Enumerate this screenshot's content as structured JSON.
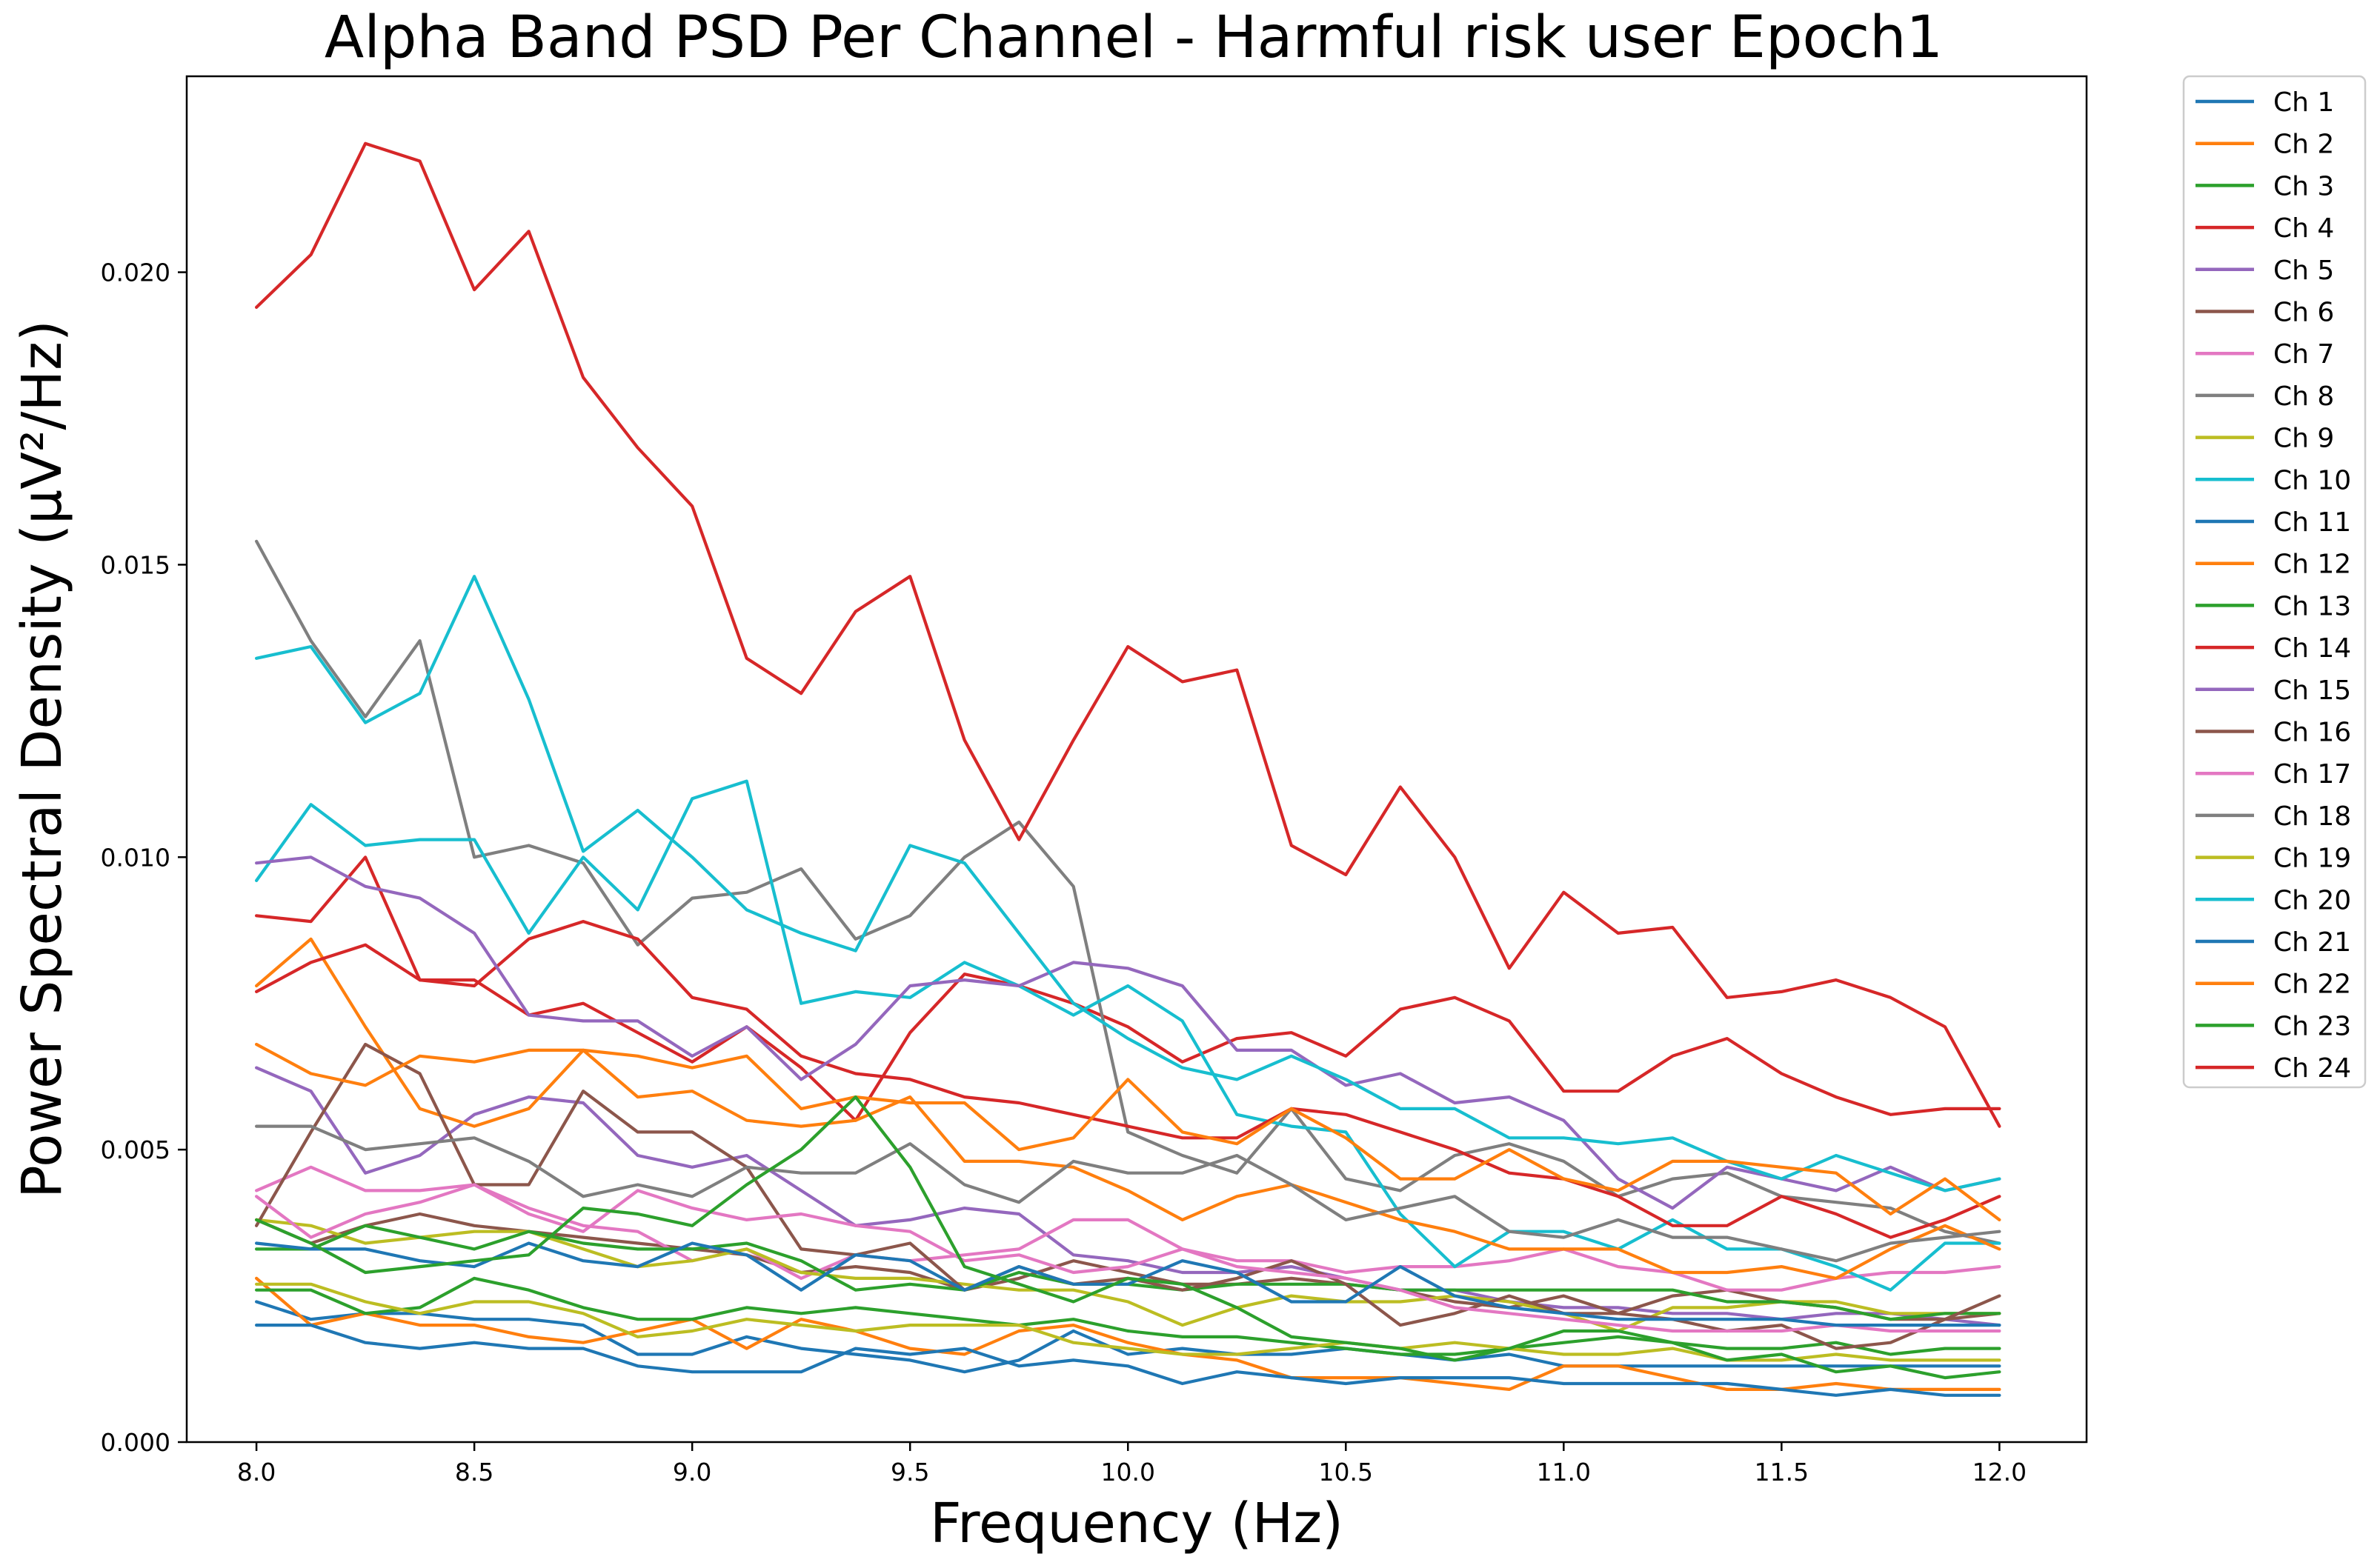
{
  "chart_data": {
    "type": "line",
    "title": "Alpha Band PSD Per Channel - Harmful risk user Epoch1",
    "xlabel": "Frequency (Hz)",
    "ylabel": "Power Spectral Density (µV²/Hz)",
    "xlim": [
      7.84,
      12.2
    ],
    "ylim": [
      0,
      0.02335
    ],
    "xticks": [
      8.0,
      8.5,
      9.0,
      9.5,
      10.0,
      10.5,
      11.0,
      11.5,
      12.0
    ],
    "xtick_labels": [
      "8.0",
      "8.5",
      "9.0",
      "9.5",
      "10.0",
      "10.5",
      "11.0",
      "11.5",
      "12.0"
    ],
    "yticks": [
      0.0,
      0.005,
      0.01,
      0.015,
      0.02
    ],
    "ytick_labels": [
      "0.000",
      "0.005",
      "0.010",
      "0.015",
      "0.020"
    ],
    "legend_position": "outside-right",
    "x": [
      8.0,
      8.125,
      8.25,
      8.375,
      8.5,
      8.625,
      8.75,
      8.875,
      9.0,
      9.125,
      9.25,
      9.375,
      9.5,
      9.625,
      9.75,
      9.875,
      10.0,
      10.125,
      10.25,
      10.375,
      10.5,
      10.625,
      10.75,
      10.875,
      11.0,
      11.125,
      11.25,
      11.375,
      11.5,
      11.625,
      11.75,
      11.875,
      12.0
    ],
    "series": [
      {
        "name": "Ch 1",
        "color": "#1f77b4",
        "values": [
          0.0024,
          0.0021,
          0.0022,
          0.0022,
          0.0021,
          0.0021,
          0.002,
          0.0015,
          0.0015,
          0.0018,
          0.0016,
          0.0015,
          0.0014,
          0.0012,
          0.0014,
          0.0019,
          0.0015,
          0.0016,
          0.0015,
          0.0015,
          0.0016,
          0.0015,
          0.0014,
          0.0015,
          0.0013,
          0.0013,
          0.0013,
          0.0013,
          0.0013,
          0.0013,
          0.0013,
          0.0013,
          0.0013
        ]
      },
      {
        "name": "Ch 2",
        "color": "#ff7f0e",
        "values": [
          0.0028,
          0.002,
          0.0022,
          0.002,
          0.002,
          0.0018,
          0.0017,
          0.0019,
          0.0021,
          0.0016,
          0.0021,
          0.0019,
          0.0016,
          0.0015,
          0.0019,
          0.002,
          0.0017,
          0.0015,
          0.0014,
          0.0011,
          0.0011,
          0.0011,
          0.001,
          0.0009,
          0.0013,
          0.0013,
          0.0011,
          0.0009,
          0.0009,
          0.001,
          0.0009,
          0.0009,
          0.0009
        ]
      },
      {
        "name": "Ch 3",
        "color": "#2ca02c",
        "values": [
          0.0026,
          0.0026,
          0.0022,
          0.0023,
          0.0028,
          0.0026,
          0.0023,
          0.0021,
          0.0021,
          0.0023,
          0.0022,
          0.0023,
          0.0022,
          0.0021,
          0.002,
          0.0021,
          0.0019,
          0.0018,
          0.0018,
          0.0017,
          0.0016,
          0.0015,
          0.0015,
          0.0016,
          0.0017,
          0.0018,
          0.0017,
          0.0016,
          0.0016,
          0.0017,
          0.0015,
          0.0016,
          0.0016
        ]
      },
      {
        "name": "Ch 4",
        "color": "#d62728",
        "values": [
          0.009,
          0.0089,
          0.01,
          0.0079,
          0.0079,
          0.0073,
          0.0075,
          0.007,
          0.0065,
          0.0071,
          0.0064,
          0.0055,
          0.007,
          0.008,
          0.0078,
          0.0075,
          0.0071,
          0.0065,
          0.0069,
          0.007,
          0.0066,
          0.0074,
          0.0076,
          0.0072,
          0.006,
          0.006,
          0.0066,
          0.0069,
          0.0063,
          0.0059,
          0.0056,
          0.0057,
          0.0057
        ]
      },
      {
        "name": "Ch 5",
        "color": "#9467bd",
        "values": [
          0.0064,
          0.006,
          0.0046,
          0.0049,
          0.0056,
          0.0059,
          0.0058,
          0.0049,
          0.0047,
          0.0049,
          0.0043,
          0.0037,
          0.0038,
          0.004,
          0.0039,
          0.0032,
          0.0031,
          0.0029,
          0.0029,
          0.003,
          0.0028,
          0.0026,
          0.0026,
          0.0024,
          0.0023,
          0.0023,
          0.0022,
          0.0022,
          0.0021,
          0.0022,
          0.0022,
          0.0021,
          0.002
        ]
      },
      {
        "name": "Ch 6",
        "color": "#8c564b",
        "values": [
          0.0038,
          0.0034,
          0.0037,
          0.0039,
          0.0037,
          0.0036,
          0.0035,
          0.0034,
          0.0033,
          0.0032,
          0.0029,
          0.003,
          0.0029,
          0.0026,
          0.0028,
          0.0031,
          0.0029,
          0.0027,
          0.0027,
          0.0028,
          0.0027,
          0.0026,
          0.0024,
          0.0023,
          0.0025,
          0.0022,
          0.0025,
          0.0026,
          0.0024,
          0.0023,
          0.0021,
          0.0021,
          0.0022
        ]
      },
      {
        "name": "Ch 7",
        "color": "#e377c2",
        "values": [
          0.0043,
          0.0047,
          0.0043,
          0.0043,
          0.0044,
          0.004,
          0.0037,
          0.0036,
          0.0031,
          0.0033,
          0.0028,
          0.0032,
          0.0031,
          0.0032,
          0.0033,
          0.0038,
          0.0038,
          0.0033,
          0.0031,
          0.0031,
          0.0029,
          0.003,
          0.003,
          0.0031,
          0.0033,
          0.003,
          0.0029,
          0.0026,
          0.0026,
          0.0028,
          0.0029,
          0.0029,
          0.003
        ]
      },
      {
        "name": "Ch 8",
        "color": "#7f7f7f",
        "values": [
          0.0154,
          0.0137,
          0.0124,
          0.0137,
          0.01,
          0.0102,
          0.0099,
          0.0085,
          0.0093,
          0.0094,
          0.0098,
          0.0086,
          0.009,
          0.01,
          0.0106,
          0.0095,
          0.0053,
          0.0049,
          0.0046,
          0.0057,
          0.0045,
          0.0043,
          0.0049,
          0.0051,
          0.0048,
          0.0042,
          0.0045,
          0.0046,
          0.0042,
          0.0041,
          0.004,
          0.0036,
          0.0034
        ]
      },
      {
        "name": "Ch 9",
        "color": "#bcbd22",
        "values": [
          0.0038,
          0.0037,
          0.0034,
          0.0035,
          0.0036,
          0.0036,
          0.0033,
          0.003,
          0.0031,
          0.0033,
          0.0029,
          0.0028,
          0.0028,
          0.0027,
          0.0026,
          0.0026,
          0.0024,
          0.002,
          0.0023,
          0.0025,
          0.0024,
          0.0024,
          0.0025,
          0.0024,
          0.0022,
          0.0019,
          0.0023,
          0.0023,
          0.0024,
          0.0024,
          0.0022,
          0.0022,
          0.0022
        ]
      },
      {
        "name": "Ch 10",
        "color": "#17becf",
        "values": [
          0.0096,
          0.0109,
          0.0102,
          0.0103,
          0.0103,
          0.0087,
          0.01,
          0.0091,
          0.011,
          0.0113,
          0.0075,
          0.0077,
          0.0076,
          0.0082,
          0.0078,
          0.0073,
          0.0078,
          0.0072,
          0.0056,
          0.0054,
          0.0053,
          0.0039,
          0.003,
          0.0036,
          0.0036,
          0.0033,
          0.0038,
          0.0033,
          0.0033,
          0.003,
          0.0026,
          0.0034,
          0.0034
        ]
      },
      {
        "name": "Ch 11",
        "color": "#1f77b4",
        "values": [
          0.002,
          0.002,
          0.0017,
          0.0016,
          0.0017,
          0.0016,
          0.0016,
          0.0013,
          0.0012,
          0.0012,
          0.0012,
          0.0016,
          0.0015,
          0.0016,
          0.0013,
          0.0014,
          0.0013,
          0.001,
          0.0012,
          0.0011,
          0.001,
          0.0011,
          0.0011,
          0.0011,
          0.001,
          0.001,
          0.001,
          0.001,
          0.0009,
          0.0008,
          0.0009,
          0.0008,
          0.0008
        ]
      },
      {
        "name": "Ch 12",
        "color": "#ff7f0e",
        "values": [
          0.0078,
          0.0086,
          0.0071,
          0.0057,
          0.0054,
          0.0057,
          0.0067,
          0.0059,
          0.006,
          0.0055,
          0.0054,
          0.0055,
          0.0059,
          0.0048,
          0.0048,
          0.0047,
          0.0043,
          0.0038,
          0.0042,
          0.0044,
          0.0041,
          0.0038,
          0.0036,
          0.0033,
          0.0033,
          0.0033,
          0.0029,
          0.0029,
          0.003,
          0.0028,
          0.0033,
          0.0037,
          0.0033
        ]
      },
      {
        "name": "Ch 13",
        "color": "#2ca02c",
        "values": [
          0.0033,
          0.0033,
          0.0037,
          0.0035,
          0.0033,
          0.0036,
          0.0034,
          0.0033,
          0.0033,
          0.0034,
          0.0031,
          0.0026,
          0.0027,
          0.0026,
          0.0029,
          0.0027,
          0.0027,
          0.0026,
          0.0027,
          0.0027,
          0.0027,
          0.0026,
          0.0026,
          0.0026,
          0.0026,
          0.0026,
          0.0026,
          0.0024,
          0.0024,
          0.0023,
          0.0021,
          0.0022,
          0.0022
        ]
      },
      {
        "name": "Ch 14",
        "color": "#d62728",
        "values": [
          0.0077,
          0.0082,
          0.0085,
          0.0079,
          0.0078,
          0.0086,
          0.0089,
          0.0086,
          0.0076,
          0.0074,
          0.0066,
          0.0063,
          0.0062,
          0.0059,
          0.0058,
          0.0056,
          0.0054,
          0.0052,
          0.0052,
          0.0057,
          0.0056,
          0.0053,
          0.005,
          0.0046,
          0.0045,
          0.0042,
          0.0037,
          0.0037,
          0.0042,
          0.0039,
          0.0035,
          0.0038,
          0.0042
        ]
      },
      {
        "name": "Ch 15",
        "color": "#9467bd",
        "values": [
          0.0099,
          0.01,
          0.0095,
          0.0093,
          0.0087,
          0.0073,
          0.0072,
          0.0072,
          0.0066,
          0.0071,
          0.0062,
          0.0068,
          0.0078,
          0.0079,
          0.0078,
          0.0082,
          0.0081,
          0.0078,
          0.0067,
          0.0067,
          0.0061,
          0.0063,
          0.0058,
          0.0059,
          0.0055,
          0.0045,
          0.004,
          0.0047,
          0.0045,
          0.0043,
          0.0047,
          0.0043,
          0.0045
        ]
      },
      {
        "name": "Ch 16",
        "color": "#8c564b",
        "values": [
          0.0037,
          0.0053,
          0.0068,
          0.0063,
          0.0044,
          0.0044,
          0.006,
          0.0053,
          0.0053,
          0.0047,
          0.0033,
          0.0032,
          0.0034,
          0.0026,
          0.003,
          0.0027,
          0.0028,
          0.0026,
          0.0028,
          0.0031,
          0.0027,
          0.002,
          0.0022,
          0.0025,
          0.0022,
          0.0022,
          0.0021,
          0.0019,
          0.002,
          0.0016,
          0.0017,
          0.0021,
          0.0025
        ]
      },
      {
        "name": "Ch 17",
        "color": "#e377c2",
        "values": [
          0.0042,
          0.0035,
          0.0039,
          0.0041,
          0.0044,
          0.0039,
          0.0036,
          0.0043,
          0.004,
          0.0038,
          0.0039,
          0.0037,
          0.0036,
          0.0031,
          0.0032,
          0.0029,
          0.003,
          0.0033,
          0.003,
          0.0029,
          0.0028,
          0.0026,
          0.0023,
          0.0022,
          0.0021,
          0.002,
          0.0019,
          0.0019,
          0.0019,
          0.002,
          0.0019,
          0.0019,
          0.0019
        ]
      },
      {
        "name": "Ch 18",
        "color": "#7f7f7f",
        "values": [
          0.0054,
          0.0054,
          0.005,
          0.0051,
          0.0052,
          0.0048,
          0.0042,
          0.0044,
          0.0042,
          0.0047,
          0.0046,
          0.0046,
          0.0051,
          0.0044,
          0.0041,
          0.0048,
          0.0046,
          0.0046,
          0.0049,
          0.0044,
          0.0038,
          0.004,
          0.0042,
          0.0036,
          0.0035,
          0.0038,
          0.0035,
          0.0035,
          0.0033,
          0.0031,
          0.0034,
          0.0035,
          0.0036
        ]
      },
      {
        "name": "Ch 19",
        "color": "#bcbd22",
        "values": [
          0.0027,
          0.0027,
          0.0024,
          0.0022,
          0.0024,
          0.0024,
          0.0022,
          0.0018,
          0.0019,
          0.0021,
          0.002,
          0.0019,
          0.002,
          0.002,
          0.002,
          0.0017,
          0.0016,
          0.0015,
          0.0015,
          0.0016,
          0.0017,
          0.0016,
          0.0017,
          0.0016,
          0.0015,
          0.0015,
          0.0016,
          0.0014,
          0.0014,
          0.0015,
          0.0014,
          0.0014,
          0.0014
        ]
      },
      {
        "name": "Ch 20",
        "color": "#17becf",
        "values": [
          0.0134,
          0.0136,
          0.0123,
          0.0128,
          0.0148,
          0.0127,
          0.0101,
          0.0108,
          0.01,
          0.0091,
          0.0087,
          0.0084,
          0.0102,
          0.0099,
          0.0087,
          0.0075,
          0.0069,
          0.0064,
          0.0062,
          0.0066,
          0.0062,
          0.0057,
          0.0057,
          0.0052,
          0.0052,
          0.0051,
          0.0052,
          0.0048,
          0.0045,
          0.0049,
          0.0046,
          0.0043,
          0.0045
        ]
      },
      {
        "name": "Ch 21",
        "color": "#1f77b4",
        "values": [
          0.0034,
          0.0033,
          0.0033,
          0.0031,
          0.003,
          0.0034,
          0.0031,
          0.003,
          0.0034,
          0.0032,
          0.0026,
          0.0032,
          0.0031,
          0.0026,
          0.003,
          0.0027,
          0.0027,
          0.0031,
          0.0029,
          0.0024,
          0.0024,
          0.003,
          0.0025,
          0.0023,
          0.0022,
          0.0021,
          0.0021,
          0.0021,
          0.0021,
          0.002,
          0.002,
          0.002,
          0.002
        ]
      },
      {
        "name": "Ch 22",
        "color": "#ff7f0e",
        "values": [
          0.0068,
          0.0063,
          0.0061,
          0.0066,
          0.0065,
          0.0067,
          0.0067,
          0.0066,
          0.0064,
          0.0066,
          0.0057,
          0.0059,
          0.0058,
          0.0058,
          0.005,
          0.0052,
          0.0062,
          0.0053,
          0.0051,
          0.0057,
          0.0052,
          0.0045,
          0.0045,
          0.005,
          0.0045,
          0.0043,
          0.0048,
          0.0048,
          0.0047,
          0.0046,
          0.0039,
          0.0045,
          0.0038
        ]
      },
      {
        "name": "Ch 23",
        "color": "#2ca02c",
        "values": [
          0.0038,
          0.0034,
          0.0029,
          0.003,
          0.0031,
          0.0032,
          0.004,
          0.0039,
          0.0037,
          0.0044,
          0.005,
          0.0059,
          0.0047,
          0.003,
          0.0027,
          0.0024,
          0.0028,
          0.0027,
          0.0023,
          0.0018,
          0.0017,
          0.0016,
          0.0014,
          0.0016,
          0.0019,
          0.0019,
          0.0017,
          0.0014,
          0.0015,
          0.0012,
          0.0013,
          0.0011,
          0.0012
        ]
      },
      {
        "name": "Ch 24",
        "color": "#d62728",
        "values": [
          0.0194,
          0.0203,
          0.0222,
          0.0219,
          0.0197,
          0.0207,
          0.0182,
          0.017,
          0.016,
          0.0134,
          0.0128,
          0.0142,
          0.0148,
          0.012,
          0.0103,
          0.012,
          0.0136,
          0.013,
          0.0132,
          0.0102,
          0.0097,
          0.0112,
          0.01,
          0.0081,
          0.0094,
          0.0087,
          0.0088,
          0.0076,
          0.0077,
          0.0079,
          0.0076,
          0.0071,
          0.0054
        ]
      }
    ]
  }
}
